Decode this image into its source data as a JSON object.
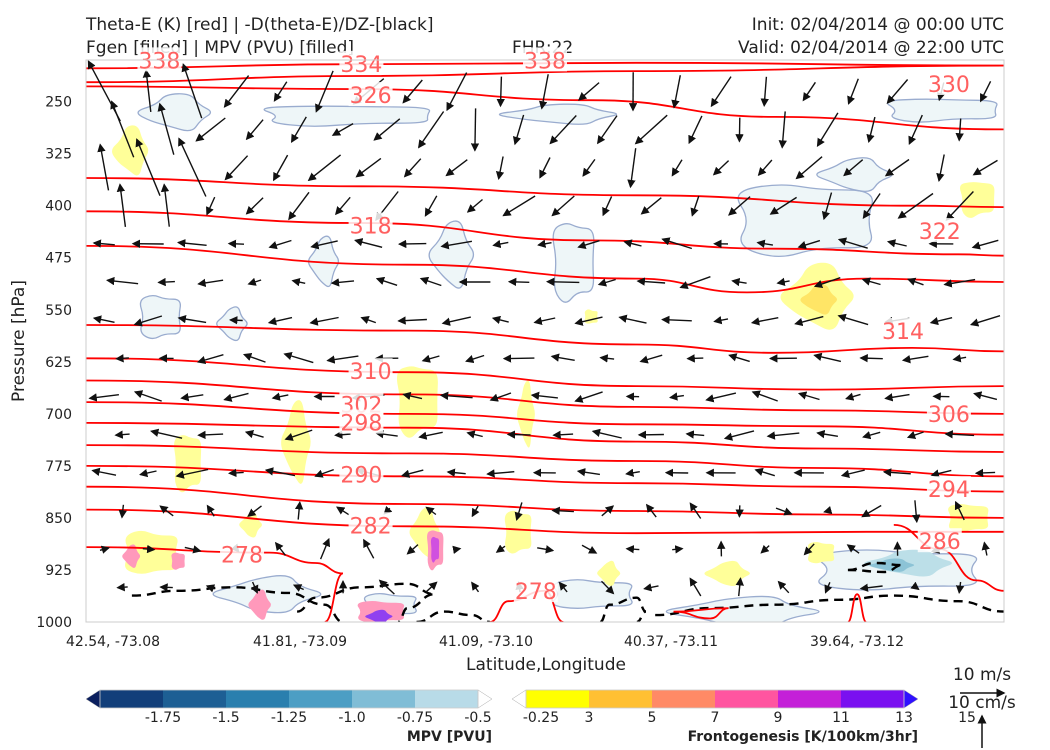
{
  "header": {
    "line1_left": "Theta-E (K) [red] | -D(theta-E)/DZ-[black]",
    "line2_left": "Fgen [filled] | MPV (PVU) [filled]",
    "fhr": "FHR:22",
    "init": "Init: 02/04/2014 @ 00:00 UTC",
    "valid": "Valid: 02/04/2014 @ 22:00 UTC"
  },
  "chart_data": {
    "type": "cross-section",
    "xlabel": "Latitude,Longitude",
    "ylabel": "Pressure [hPa]",
    "x_ticks": [
      "42.54, -73.08",
      "41.81, -73.09",
      "41.09, -73.10",
      "40.37, -73.11",
      "39.64, -73.12"
    ],
    "y_ticks": [
      250,
      325,
      400,
      475,
      550,
      625,
      700,
      775,
      850,
      925,
      1000
    ],
    "ylim": [
      1000,
      190
    ],
    "theta_e_color": "#ff0000",
    "theta_e_levels": [
      278,
      282,
      286,
      290,
      294,
      298,
      302,
      306,
      310,
      314,
      318,
      322,
      326,
      330,
      334,
      338
    ],
    "theta_e_labels": [
      {
        "text": "338",
        "x": 0.08,
        "p": 192
      },
      {
        "text": "334",
        "x": 0.3,
        "p": 197
      },
      {
        "text": "338",
        "x": 0.5,
        "p": 192
      },
      {
        "text": "330",
        "x": 0.94,
        "p": 226
      },
      {
        "text": "326",
        "x": 0.31,
        "p": 242
      },
      {
        "text": "322",
        "x": 0.93,
        "p": 438
      },
      {
        "text": "318",
        "x": 0.31,
        "p": 430
      },
      {
        "text": "314",
        "x": 0.89,
        "p": 582
      },
      {
        "text": "310",
        "x": 0.31,
        "p": 640
      },
      {
        "text": "306",
        "x": 0.94,
        "p": 702
      },
      {
        "text": "302",
        "x": 0.3,
        "p": 688
      },
      {
        "text": "298",
        "x": 0.3,
        "p": 714
      },
      {
        "text": "294",
        "x": 0.94,
        "p": 810
      },
      {
        "text": "290",
        "x": 0.3,
        "p": 789
      },
      {
        "text": "286",
        "x": 0.93,
        "p": 885
      },
      {
        "text": "282",
        "x": 0.31,
        "p": 862
      },
      {
        "text": "278",
        "x": 0.17,
        "p": 904
      },
      {
        "text": "278",
        "x": 0.49,
        "p": 957
      }
    ],
    "mpv_colorbar": {
      "title": "MPV [PVU]",
      "ticks": [
        "-1.75",
        "-1.5",
        "-1.25",
        "-1.0",
        "-0.75",
        "-0.5",
        "-0.25"
      ],
      "colors": [
        "#0b1f5e",
        "#123f7a",
        "#1d5f94",
        "#2a7fae",
        "#4c9ec4",
        "#80bdd6",
        "#b8dbe8",
        "#ffffff"
      ]
    },
    "fgen_colorbar": {
      "title": "Frontogenesis [K/100km/3hr]",
      "ticks": [
        "3",
        "5",
        "7",
        "9",
        "11",
        "13",
        "15"
      ],
      "colors": [
        "#ffffff",
        "#ffff00",
        "#ffc033",
        "#ff8a66",
        "#ff55a0",
        "#c420d8",
        "#7a10f0",
        "#3010ff"
      ]
    },
    "scale": {
      "horizontal": "10 m/s",
      "vertical": "10 cm/s"
    },
    "grid": false
  }
}
